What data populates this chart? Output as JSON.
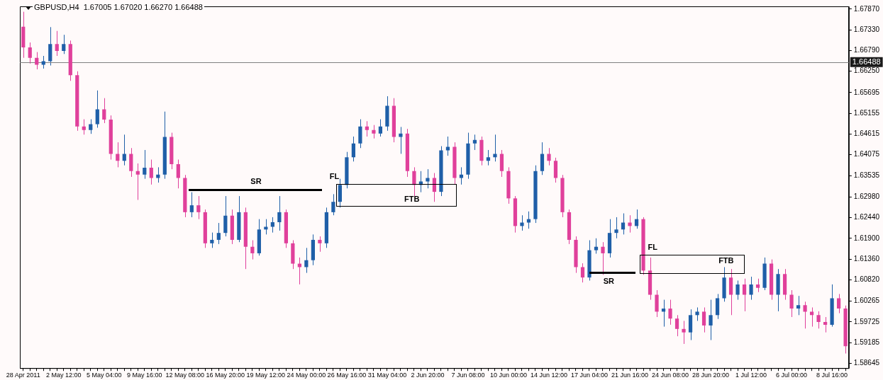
{
  "chart_data": {
    "type": "candlestick",
    "title": "GBPUSD,H4  1.67005 1.67020 1.66270 1.66488",
    "categories": [
      "28 Apr 2011",
      null,
      null,
      null,
      null,
      null,
      "2 May 12:00",
      null,
      null,
      null,
      null,
      null,
      "5 May 04:00",
      null,
      null,
      null,
      null,
      null,
      "9 May 16:00",
      null,
      null,
      null,
      null,
      null,
      "12 May 08:00",
      null,
      null,
      null,
      null,
      null,
      "16 May 20:00",
      null,
      null,
      null,
      null,
      null,
      "19 May 12:00",
      null,
      null,
      null,
      null,
      null,
      "24 May 00:00",
      null,
      null,
      null,
      null,
      null,
      "26 May 16:00",
      null,
      null,
      null,
      null,
      null,
      "31 May 04:00",
      null,
      null,
      null,
      null,
      null,
      "2 Jun 20:00",
      null,
      null,
      null,
      null,
      null,
      "7 Jun 08:00",
      null,
      null,
      null,
      null,
      null,
      "10 Jun 00:00",
      null,
      null,
      null,
      null,
      null,
      "14 Jun 12:00",
      null,
      null,
      null,
      null,
      null,
      "17 Jun 04:00",
      null,
      null,
      null,
      null,
      null,
      "21 Jun 16:00",
      null,
      null,
      null,
      null,
      null,
      "24 Jun 08:00",
      null,
      null,
      null,
      null,
      null,
      "28 Jun 20:00",
      null,
      null,
      null,
      null,
      null,
      "1 Jul 12:00",
      null,
      null,
      null,
      null,
      null,
      "6 Jul 00:00",
      null,
      null,
      null,
      null,
      null,
      "8 Jul 16:00",
      null,
      null
    ],
    "ohlc": [
      [
        1.6741,
        1.678,
        1.666,
        1.6687
      ],
      [
        1.6687,
        1.67,
        1.6645,
        1.666
      ],
      [
        1.666,
        1.6675,
        1.663,
        1.6642
      ],
      [
        1.6642,
        1.6665,
        1.6632,
        1.6651
      ],
      [
        1.6651,
        1.674,
        1.664,
        1.6696
      ],
      [
        1.6696,
        1.673,
        1.6665,
        1.6678
      ],
      [
        1.6678,
        1.672,
        1.667,
        1.6696
      ],
      [
        1.6696,
        1.6705,
        1.66,
        1.6615
      ],
      [
        1.6615,
        1.6625,
        1.647,
        1.6481
      ],
      [
        1.6481,
        1.65,
        1.646,
        1.6472
      ],
      [
        1.6472,
        1.65,
        1.6462,
        1.6487
      ],
      [
        1.6487,
        1.6575,
        1.6478,
        1.6526
      ],
      [
        1.6526,
        1.6555,
        1.649,
        1.6499
      ],
      [
        1.6499,
        1.651,
        1.6395,
        1.641
      ],
      [
        1.641,
        1.644,
        1.6375,
        1.6392
      ],
      [
        1.6392,
        1.646,
        1.638,
        1.641
      ],
      [
        1.641,
        1.6425,
        1.635,
        1.6365
      ],
      [
        1.6365,
        1.6385,
        1.629,
        1.6356
      ],
      [
        1.6356,
        1.642,
        1.6345,
        1.6374
      ],
      [
        1.6374,
        1.6395,
        1.633,
        1.6347
      ],
      [
        1.6347,
        1.6375,
        1.6335,
        1.6356
      ],
      [
        1.6356,
        1.652,
        1.6345,
        1.6454
      ],
      [
        1.6454,
        1.6465,
        1.637,
        1.6383
      ],
      [
        1.6383,
        1.6395,
        1.632,
        1.6347
      ],
      [
        1.6347,
        1.6355,
        1.6245,
        1.6258
      ],
      [
        1.6258,
        1.631,
        1.6245,
        1.6276
      ],
      [
        1.6276,
        1.63,
        1.624,
        1.6258
      ],
      [
        1.6258,
        1.6265,
        1.6165,
        1.6177
      ],
      [
        1.6177,
        1.6205,
        1.6165,
        1.6186
      ],
      [
        1.6186,
        1.623,
        1.6175,
        1.6204
      ],
      [
        1.6204,
        1.63,
        1.6195,
        1.6249
      ],
      [
        1.6249,
        1.6265,
        1.6175,
        1.6186
      ],
      [
        1.6186,
        1.63,
        1.618,
        1.6258
      ],
      [
        1.6258,
        1.627,
        1.611,
        1.6168
      ],
      [
        1.6168,
        1.6185,
        1.6135,
        1.6151
      ],
      [
        1.6151,
        1.624,
        1.6145,
        1.6213
      ],
      [
        1.6213,
        1.624,
        1.62,
        1.622
      ],
      [
        1.622,
        1.6245,
        1.6205,
        1.6232
      ],
      [
        1.6232,
        1.63,
        1.621,
        1.6258
      ],
      [
        1.6258,
        1.6265,
        1.6165,
        1.6177
      ],
      [
        1.6177,
        1.6185,
        1.611,
        1.6124
      ],
      [
        1.6124,
        1.614,
        1.607,
        1.6115
      ],
      [
        1.6115,
        1.6165,
        1.61,
        1.6133
      ],
      [
        1.6133,
        1.62,
        1.612,
        1.6186
      ],
      [
        1.6186,
        1.6195,
        1.6155,
        1.6177
      ],
      [
        1.6177,
        1.627,
        1.6165,
        1.6258
      ],
      [
        1.6258,
        1.6305,
        1.625,
        1.6285
      ],
      [
        1.6285,
        1.6345,
        1.627,
        1.6329
      ],
      [
        1.6329,
        1.6415,
        1.632,
        1.6401
      ],
      [
        1.6401,
        1.6455,
        1.639,
        1.6437
      ],
      [
        1.6437,
        1.65,
        1.6425,
        1.6481
      ],
      [
        1.6481,
        1.6495,
        1.6455,
        1.6472
      ],
      [
        1.6472,
        1.6485,
        1.645,
        1.6463
      ],
      [
        1.6463,
        1.65,
        1.6455,
        1.6481
      ],
      [
        1.6481,
        1.656,
        1.647,
        1.6535
      ],
      [
        1.6535,
        1.6555,
        1.644,
        1.6454
      ],
      [
        1.6454,
        1.648,
        1.641,
        1.6463
      ],
      [
        1.6463,
        1.6475,
        1.635,
        1.6365
      ],
      [
        1.6365,
        1.6375,
        1.63,
        1.6329
      ],
      [
        1.6329,
        1.6365,
        1.631,
        1.6338
      ],
      [
        1.6338,
        1.637,
        1.632,
        1.6347
      ],
      [
        1.6347,
        1.636,
        1.6285,
        1.6311
      ],
      [
        1.6311,
        1.643,
        1.63,
        1.6419
      ],
      [
        1.6419,
        1.6455,
        1.6405,
        1.6428
      ],
      [
        1.6428,
        1.644,
        1.633,
        1.6347
      ],
      [
        1.6347,
        1.6375,
        1.633,
        1.6356
      ],
      [
        1.6356,
        1.6465,
        1.6345,
        1.6437
      ],
      [
        1.6437,
        1.646,
        1.642,
        1.6446
      ],
      [
        1.6446,
        1.6455,
        1.638,
        1.6392
      ],
      [
        1.6392,
        1.642,
        1.638,
        1.6401
      ],
      [
        1.6401,
        1.646,
        1.639,
        1.641
      ],
      [
        1.641,
        1.642,
        1.635,
        1.6365
      ],
      [
        1.6365,
        1.6375,
        1.628,
        1.6294
      ],
      [
        1.6294,
        1.63,
        1.6205,
        1.6222
      ],
      [
        1.6222,
        1.625,
        1.621,
        1.6231
      ],
      [
        1.6231,
        1.626,
        1.6215,
        1.624
      ],
      [
        1.624,
        1.638,
        1.623,
        1.6365
      ],
      [
        1.6365,
        1.644,
        1.6355,
        1.641
      ],
      [
        1.641,
        1.6425,
        1.638,
        1.6392
      ],
      [
        1.6392,
        1.64,
        1.6335,
        1.6347
      ],
      [
        1.6347,
        1.6355,
        1.6245,
        1.6258
      ],
      [
        1.6258,
        1.6265,
        1.6175,
        1.6186
      ],
      [
        1.6186,
        1.6195,
        1.61,
        1.6115
      ],
      [
        1.6115,
        1.6125,
        1.6075,
        1.6088
      ],
      [
        1.6088,
        1.6185,
        1.608,
        1.6159
      ],
      [
        1.6159,
        1.619,
        1.615,
        1.6168
      ],
      [
        1.6168,
        1.618,
        1.6095,
        1.6151
      ],
      [
        1.6151,
        1.624,
        1.614,
        1.6204
      ],
      [
        1.6204,
        1.6245,
        1.619,
        1.6213
      ],
      [
        1.6213,
        1.6255,
        1.62,
        1.6231
      ],
      [
        1.6231,
        1.625,
        1.6205,
        1.6222
      ],
      [
        1.6222,
        1.6265,
        1.6215,
        1.624
      ],
      [
        1.624,
        1.6245,
        1.6095,
        1.6106
      ],
      [
        1.6106,
        1.614,
        1.603,
        1.6043
      ],
      [
        1.6043,
        1.6055,
        1.5985,
        1.5999
      ],
      [
        1.5999,
        1.603,
        1.596,
        1.6007
      ],
      [
        1.6007,
        1.603,
        1.5965,
        1.5981
      ],
      [
        1.5981,
        1.599,
        1.5935,
        1.5954
      ],
      [
        1.5954,
        1.5975,
        1.5915,
        1.5945
      ],
      [
        1.5945,
        1.6005,
        1.5925,
        1.599
      ],
      [
        1.599,
        1.601,
        1.5975,
        1.5999
      ],
      [
        1.5999,
        1.601,
        1.5945,
        1.5963
      ],
      [
        1.5963,
        1.603,
        1.5925,
        1.599
      ],
      [
        1.599,
        1.6045,
        1.598,
        1.6034
      ],
      [
        1.6034,
        1.6115,
        1.6025,
        1.6088
      ],
      [
        1.6088,
        1.611,
        1.599,
        1.6043
      ],
      [
        1.6043,
        1.608,
        1.603,
        1.607
      ],
      [
        1.607,
        1.6085,
        1.6,
        1.6043
      ],
      [
        1.6043,
        1.609,
        1.603,
        1.607
      ],
      [
        1.607,
        1.6085,
        1.605,
        1.6061
      ],
      [
        1.6061,
        1.614,
        1.6055,
        1.6124
      ],
      [
        1.6124,
        1.6135,
        1.603,
        1.6043
      ],
      [
        1.6043,
        1.611,
        1.6,
        1.6097
      ],
      [
        1.6097,
        1.611,
        1.603,
        1.6043
      ],
      [
        1.6043,
        1.6055,
        1.5985,
        1.6007
      ],
      [
        1.6007,
        1.604,
        1.599,
        1.6016
      ],
      [
        1.6016,
        1.6025,
        1.5955,
        1.5999
      ],
      [
        1.5999,
        1.601,
        1.596,
        1.599
      ],
      [
        1.599,
        1.6,
        1.5955,
        1.5972
      ],
      [
        1.5972,
        1.5985,
        1.5945,
        1.5965
      ],
      [
        1.5965,
        1.607,
        1.596,
        1.6034
      ],
      [
        1.6034,
        1.6045,
        1.5995,
        1.6007
      ],
      [
        1.6007,
        1.6015,
        1.589,
        1.5909
      ]
    ],
    "colors": [
      "#e0409b",
      "#e0409b",
      "#e0409b",
      "#1f5fa8",
      "#1f5fa8",
      "#e0409b",
      "#1f5fa8",
      "#e0409b",
      "#e0409b",
      "#e0409b",
      "#1f5fa8",
      "#1f5fa8",
      "#e0409b",
      "#e0409b",
      "#e0409b",
      "#1f5fa8",
      "#e0409b",
      "#e0409b",
      "#1f5fa8",
      "#e0409b",
      "#1f5fa8",
      "#1f5fa8",
      "#e0409b",
      "#e0409b",
      "#e0409b",
      "#1f5fa8",
      "#e0409b",
      "#e0409b",
      "#1f5fa8",
      "#1f5fa8",
      "#1f5fa8",
      "#e0409b",
      "#1f5fa8",
      "#e0409b",
      "#e0409b",
      "#1f5fa8",
      "#1f5fa8",
      "#1f5fa8",
      "#1f5fa8",
      "#e0409b",
      "#e0409b",
      "#e0409b",
      "#1f5fa8",
      "#1f5fa8",
      "#e0409b",
      "#1f5fa8",
      "#1f5fa8",
      "#1f5fa8",
      "#1f5fa8",
      "#1f5fa8",
      "#1f5fa8",
      "#e0409b",
      "#e0409b",
      "#1f5fa8",
      "#1f5fa8",
      "#e0409b",
      "#1f5fa8",
      "#e0409b",
      "#e0409b",
      "#1f5fa8",
      "#1f5fa8",
      "#e0409b",
      "#1f5fa8",
      "#1f5fa8",
      "#e0409b",
      "#1f5fa8",
      "#1f5fa8",
      "#1f5fa8",
      "#e0409b",
      "#1f5fa8",
      "#1f5fa8",
      "#e0409b",
      "#e0409b",
      "#e0409b",
      "#1f5fa8",
      "#1f5fa8",
      "#1f5fa8",
      "#1f5fa8",
      "#e0409b",
      "#e0409b",
      "#e0409b",
      "#e0409b",
      "#e0409b",
      "#e0409b",
      "#1f5fa8",
      "#1f5fa8",
      "#e0409b",
      "#1f5fa8",
      "#1f5fa8",
      "#1f5fa8",
      "#e0409b",
      "#1f5fa8",
      "#e0409b",
      "#e0409b",
      "#e0409b",
      "#1f5fa8",
      "#e0409b",
      "#e0409b",
      "#e0409b",
      "#1f5fa8",
      "#1f5fa8",
      "#e0409b",
      "#1f5fa8",
      "#1f5fa8",
      "#1f5fa8",
      "#e0409b",
      "#1f5fa8",
      "#e0409b",
      "#1f5fa8",
      "#e0409b",
      "#1f5fa8",
      "#e0409b",
      "#1f5fa8",
      "#e0409b",
      "#e0409b",
      "#1f5fa8",
      "#e0409b",
      "#e0409b",
      "#e0409b",
      "#e0409b",
      "#1f5fa8",
      "#e0409b",
      "#e0409b"
    ],
    "ylim": [
      1.5852,
      1.6794
    ],
    "yticks": [
      {
        "value": 1.58645,
        "label": "1.58645"
      },
      {
        "value": 1.59185,
        "label": "1.59185"
      },
      {
        "value": 1.59725,
        "label": "1.59725"
      },
      {
        "value": 1.60265,
        "label": "1.60265"
      },
      {
        "value": 1.6082,
        "label": "1.60820"
      },
      {
        "value": 1.6136,
        "label": "1.61360"
      },
      {
        "value": 1.619,
        "label": "1.61900"
      },
      {
        "value": 1.6244,
        "label": "1.62440"
      },
      {
        "value": 1.6298,
        "label": "1.62980"
      },
      {
        "value": 1.63535,
        "label": "1.63535"
      },
      {
        "value": 1.64075,
        "label": "1.64075"
      },
      {
        "value": 1.64615,
        "label": "1.64615"
      },
      {
        "value": 1.65155,
        "label": "1.65155"
      },
      {
        "value": 1.65695,
        "label": "1.65695"
      },
      {
        "value": 1.6625,
        "label": "1.66250"
      },
      {
        "value": 1.6679,
        "label": "1.66790"
      },
      {
        "value": 1.6733,
        "label": "1.67330"
      },
      {
        "value": 1.6787,
        "label": "1.67870"
      }
    ],
    "ref_lines": [
      {
        "axis": "y",
        "value": 1.66488,
        "label": "1.66488",
        "color": "#808080"
      }
    ],
    "annotations": [
      "SR",
      "FL",
      "FTB",
      "SR",
      "FL",
      "FTB"
    ]
  }
}
